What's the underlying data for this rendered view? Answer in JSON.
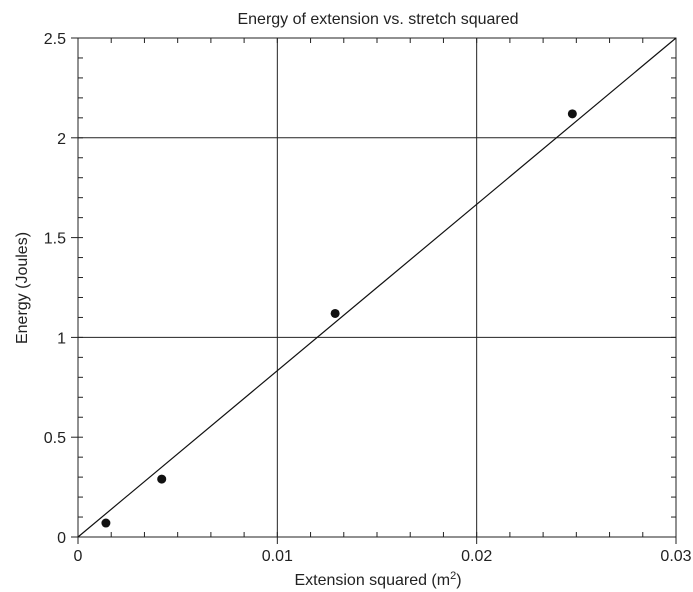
{
  "chart_data": {
    "type": "scatter",
    "title": "Energy of extension vs. stretch squared",
    "xlabel": "Extension squared (m",
    "xlabel_sup": "2",
    "xlabel_suffix": ")",
    "ylabel": "Energy (Joules)",
    "xlim": [
      0,
      0.03
    ],
    "ylim": [
      0,
      2.5
    ],
    "x_ticks": [
      0,
      0.01,
      0.02,
      0.03
    ],
    "x_tick_labels": [
      "0",
      "0.01",
      "0.02",
      "0.03"
    ],
    "y_ticks": [
      0,
      0.5,
      1,
      1.5,
      2,
      2.5
    ],
    "y_tick_labels": [
      "0",
      "0.5",
      "1",
      "1.5",
      "2",
      "2.5"
    ],
    "grid_x": [
      0.01,
      0.02
    ],
    "grid_y": [
      1,
      2
    ],
    "grid": true,
    "series": [
      {
        "x": [
          0.0014,
          0.0042,
          0.0129,
          0.0248
        ],
        "y": [
          0.07,
          0.29,
          1.12,
          2.12
        ]
      }
    ],
    "fit_line": {
      "x": [
        0,
        0.03
      ],
      "y": [
        0,
        2.5
      ]
    },
    "point_color": "#111111",
    "line_color": "#111111"
  }
}
